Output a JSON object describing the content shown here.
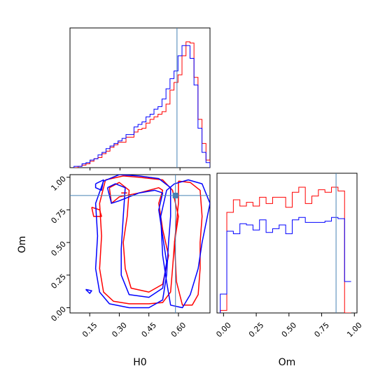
{
  "chart_data": {
    "type": "corner",
    "parameters": [
      "H0",
      "Om"
    ],
    "truth": {
      "H0": 0.585,
      "Om": 0.86
    },
    "colors": {
      "series_a": "#ff0000",
      "series_b": "#0000ff",
      "truth": "#4682b4"
    },
    "panels": [
      {
        "id": "hist-H0",
        "type": "histogram",
        "xlim": [
          0.05,
          0.75
        ],
        "bins": [
          0.08,
          0.1,
          0.12,
          0.14,
          0.16,
          0.18,
          0.2,
          0.22,
          0.24,
          0.26,
          0.28,
          0.3,
          0.32,
          0.34,
          0.36,
          0.38,
          0.4,
          0.42,
          0.44,
          0.46,
          0.48,
          0.5,
          0.52,
          0.54,
          0.56,
          0.58,
          0.6,
          0.62,
          0.64,
          0.66,
          0.68,
          0.7,
          0.72,
          0.74
        ],
        "series": [
          {
            "name": "",
            "color": "#ff0000",
            "values": [
              0,
              0.01,
              0.02,
              0.03,
              0.05,
              0.07,
              0.08,
              0.11,
              0.13,
              0.16,
              0.18,
              0.2,
              0.2,
              0.24,
              0.24,
              0.28,
              0.3,
              0.31,
              0.35,
              0.38,
              0.4,
              0.42,
              0.44,
              0.5,
              0.61,
              0.67,
              0.73,
              0.88,
              0.99,
              0.98,
              0.71,
              0.38,
              0.19,
              0.06
            ]
          },
          {
            "name": "",
            "color": "#0000ff",
            "values": [
              0.01,
              0.01,
              0.03,
              0.04,
              0.06,
              0.07,
              0.1,
              0.12,
              0.15,
              0.17,
              0.19,
              0.21,
              0.23,
              0.26,
              0.26,
              0.32,
              0.34,
              0.36,
              0.4,
              0.42,
              0.46,
              0.48,
              0.54,
              0.62,
              0.7,
              0.76,
              0.88,
              0.96,
              0.96,
              0.86,
              0.65,
              0.31,
              0.12,
              0.04
            ]
          }
        ]
      },
      {
        "id": "contour-H0-Om",
        "type": "contour",
        "xlim": [
          0.05,
          0.76
        ],
        "ylim": [
          -0.04,
          1.02
        ],
        "xlabel": "H0",
        "ylabel": "Om",
        "xticks": [
          "0.15",
          "0.30",
          "0.45",
          "0.60"
        ],
        "yticks": [
          "0.00",
          "0.25",
          "0.50",
          "0.75",
          "1.00"
        ],
        "series": [
          {
            "name": "",
            "color": "#ff0000",
            "contours": [
              [
                [
                  0.23,
                  0.98
                ],
                [
                  0.32,
                  1.01
                ],
                [
                  0.4,
                  1.0
                ],
                [
                  0.52,
                  0.98
                ],
                [
                  0.57,
                  0.9
                ],
                [
                  0.6,
                  0.7
                ],
                [
                  0.58,
                  0.5
                ],
                [
                  0.57,
                  0.3
                ],
                [
                  0.56,
                  0.12
                ],
                [
                  0.52,
                  0.04
                ],
                [
                  0.45,
                  0.03
                ],
                [
                  0.35,
                  0.03
                ],
                [
                  0.27,
                  0.05
                ],
                [
                  0.22,
                  0.12
                ],
                [
                  0.2,
                  0.3
                ],
                [
                  0.21,
                  0.55
                ],
                [
                  0.2,
                  0.8
                ],
                [
                  0.23,
                  0.98
                ]
              ],
              [
                [
                  0.25,
                  0.92
                ],
                [
                  0.3,
                  0.96
                ],
                [
                  0.35,
                  0.9
                ],
                [
                  0.34,
                  0.7
                ],
                [
                  0.32,
                  0.5
                ],
                [
                  0.33,
                  0.3
                ],
                [
                  0.36,
                  0.15
                ],
                [
                  0.45,
                  0.12
                ],
                [
                  0.52,
                  0.18
                ],
                [
                  0.55,
                  0.4
                ],
                [
                  0.52,
                  0.6
                ],
                [
                  0.5,
                  0.8
                ],
                [
                  0.52,
                  0.9
                ],
                [
                  0.5,
                  0.92
                ],
                [
                  0.4,
                  0.88
                ],
                [
                  0.3,
                  0.85
                ],
                [
                  0.26,
                  0.8
                ],
                [
                  0.25,
                  0.92
                ]
              ],
              [
                [
                  0.16,
                  0.77
                ],
                [
                  0.2,
                  0.75
                ],
                [
                  0.21,
                  0.7
                ],
                [
                  0.17,
                  0.7
                ],
                [
                  0.16,
                  0.77
                ]
              ],
              [
                [
                  0.31,
                  0.88
                ],
                [
                  0.34,
                  0.88
                ]
              ],
              [
                [
                  0.6,
                  0.97
                ],
                [
                  0.66,
                  0.96
                ],
                [
                  0.71,
                  0.9
                ],
                [
                  0.72,
                  0.7
                ],
                [
                  0.71,
                  0.5
                ],
                [
                  0.71,
                  0.3
                ],
                [
                  0.7,
                  0.1
                ],
                [
                  0.67,
                  0.02
                ],
                [
                  0.62,
                  0.02
                ],
                [
                  0.59,
                  0.2
                ],
                [
                  0.58,
                  0.5
                ],
                [
                  0.6,
                  0.8
                ],
                [
                  0.6,
                  0.97
                ]
              ]
            ]
          },
          {
            "name": "",
            "color": "#0000ff",
            "contours": [
              [
                [
                  0.22,
                  0.97
                ],
                [
                  0.3,
                  1.02
                ],
                [
                  0.4,
                  1.01
                ],
                [
                  0.5,
                  0.99
                ],
                [
                  0.56,
                  0.92
                ],
                [
                  0.56,
                  0.7
                ],
                [
                  0.55,
                  0.5
                ],
                [
                  0.54,
                  0.25
                ],
                [
                  0.52,
                  0.06
                ],
                [
                  0.45,
                  0.0
                ],
                [
                  0.35,
                  0.0
                ],
                [
                  0.25,
                  0.03
                ],
                [
                  0.2,
                  0.12
                ],
                [
                  0.18,
                  0.3
                ],
                [
                  0.19,
                  0.55
                ],
                [
                  0.18,
                  0.8
                ],
                [
                  0.22,
                  0.97
                ]
              ],
              [
                [
                  0.24,
                  0.92
                ],
                [
                  0.28,
                  0.95
                ],
                [
                  0.33,
                  0.92
                ],
                [
                  0.32,
                  0.7
                ],
                [
                  0.31,
                  0.45
                ],
                [
                  0.31,
                  0.25
                ],
                [
                  0.35,
                  0.1
                ],
                [
                  0.45,
                  0.08
                ],
                [
                  0.52,
                  0.15
                ],
                [
                  0.54,
                  0.35
                ],
                [
                  0.52,
                  0.55
                ],
                [
                  0.5,
                  0.75
                ],
                [
                  0.52,
                  0.88
                ],
                [
                  0.48,
                  0.9
                ],
                [
                  0.4,
                  0.88
                ],
                [
                  0.3,
                  0.82
                ],
                [
                  0.26,
                  0.8
                ],
                [
                  0.24,
                  0.92
                ]
              ],
              [
                [
                  0.18,
                  0.95
                ],
                [
                  0.22,
                  0.98
                ],
                [
                  0.21,
                  0.9
                ],
                [
                  0.18,
                  0.92
                ],
                [
                  0.18,
                  0.95
                ]
              ],
              [
                [
                  0.13,
                  0.14
                ],
                [
                  0.16,
                  0.13
                ],
                [
                  0.15,
                  0.11
                ],
                [
                  0.13,
                  0.14
                ]
              ],
              [
                [
                  0.58,
                  0.95
                ],
                [
                  0.65,
                  0.98
                ],
                [
                  0.72,
                  0.95
                ],
                [
                  0.76,
                  0.8
                ],
                [
                  0.72,
                  0.5
                ],
                [
                  0.7,
                  0.3
                ],
                [
                  0.66,
                  0.1
                ],
                [
                  0.62,
                  0.0
                ],
                [
                  0.56,
                  0.02
                ],
                [
                  0.54,
                  0.2
                ],
                [
                  0.52,
                  0.4
                ],
                [
                  0.51,
                  0.7
                ],
                [
                  0.54,
                  0.9
                ],
                [
                  0.58,
                  0.95
                ]
              ]
            ]
          }
        ]
      },
      {
        "id": "hist-Om",
        "type": "histogram",
        "xlim": [
          -0.05,
          1.02
        ],
        "xlabel": "Om",
        "xticks": [
          "0.00",
          "0.25",
          "0.50",
          "0.75",
          "1.00"
        ],
        "bins": [
          0.0,
          0.05,
          0.1,
          0.15,
          0.2,
          0.25,
          0.3,
          0.35,
          0.4,
          0.45,
          0.5,
          0.55,
          0.6,
          0.65,
          0.7,
          0.75,
          0.8,
          0.85,
          0.9,
          0.95,
          1.0
        ],
        "series": [
          {
            "name": "",
            "color": "#ff0000",
            "values": [
              0.02,
              0.8,
              0.9,
              0.85,
              0.88,
              0.85,
              0.92,
              0.87,
              0.92,
              0.92,
              0.84,
              0.96,
              1.0,
              0.87,
              0.93,
              0.98,
              0.96,
              1.0,
              0.97,
              0.0
            ]
          },
          {
            "name": "",
            "color": "#0000ff",
            "values": [
              0.15,
              0.65,
              0.63,
              0.71,
              0.7,
              0.66,
              0.74,
              0.64,
              0.67,
              0.7,
              0.63,
              0.74,
              0.76,
              0.72,
              0.72,
              0.72,
              0.73,
              0.76,
              0.75,
              0.25
            ]
          }
        ]
      }
    ]
  }
}
